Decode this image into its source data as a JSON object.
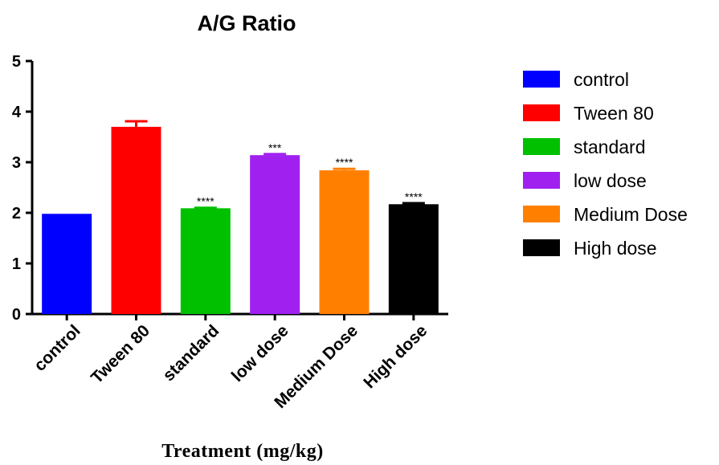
{
  "chart_data": {
    "type": "bar",
    "title": "A/G Ratio",
    "xlabel": "Treatment (mg/kg)",
    "ylabel": "",
    "ylim": [
      0,
      5
    ],
    "yticks": [
      0,
      1,
      2,
      3,
      4,
      5
    ],
    "categories": [
      "control",
      "Tween 80",
      "standard",
      "low dose",
      "Medium Dose",
      "High dose"
    ],
    "values": [
      1.98,
      3.7,
      2.09,
      3.14,
      2.84,
      2.17
    ],
    "errors": [
      0.0,
      0.11,
      0.01,
      0.02,
      0.03,
      0.02
    ],
    "significance": [
      "",
      "",
      "****",
      "***",
      "****",
      "****"
    ],
    "colors": [
      "#0000ff",
      "#ff0000",
      "#00c000",
      "#a020f0",
      "#ff8000",
      "#000000"
    ],
    "legend": {
      "position": "right",
      "entries": [
        "control",
        "Tween 80",
        "standard",
        "low dose",
        "Medium Dose",
        "High dose"
      ]
    },
    "grid": false
  }
}
